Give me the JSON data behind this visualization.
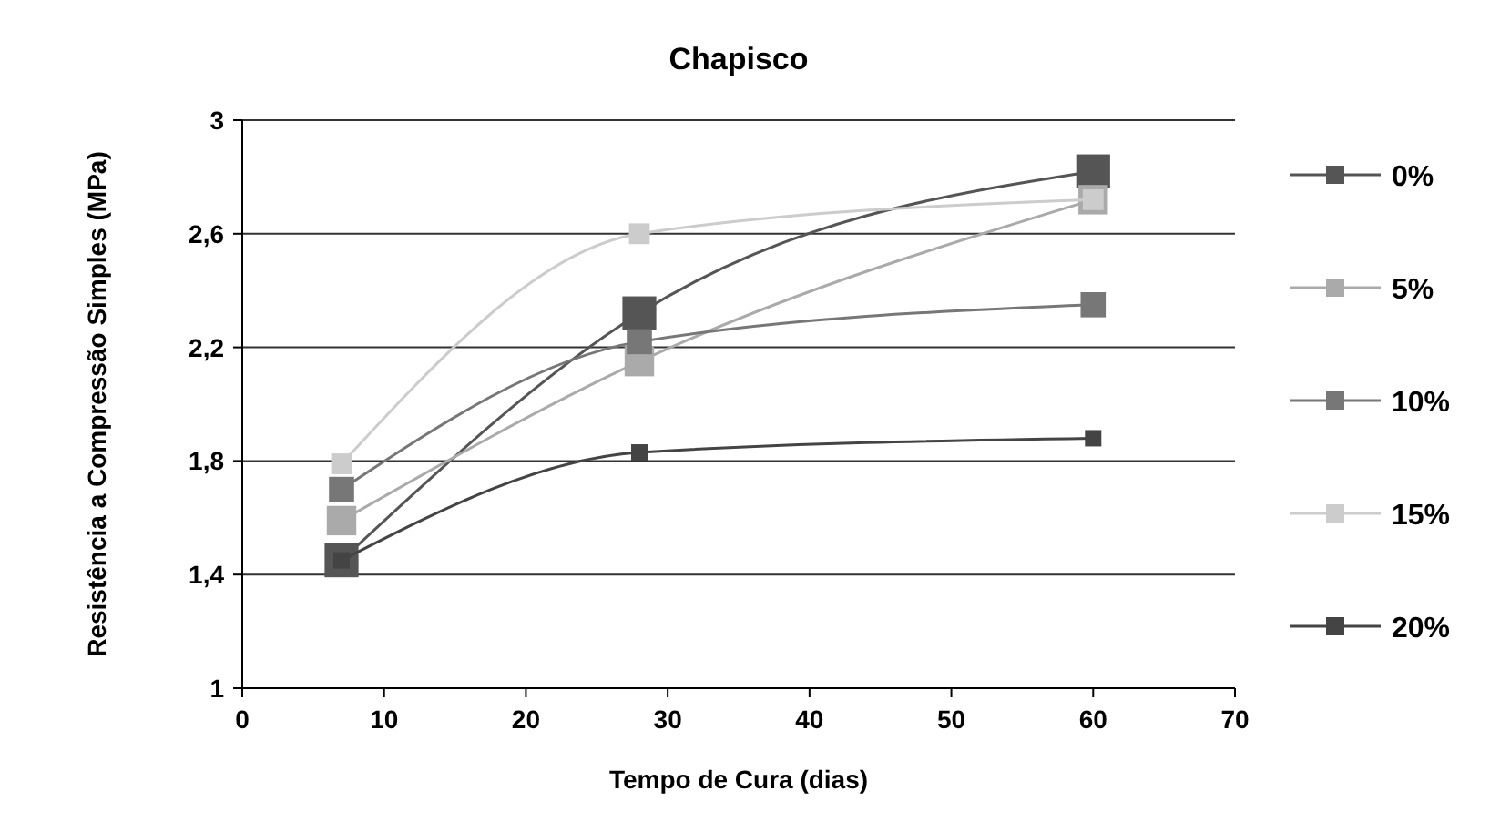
{
  "chart_data": {
    "type": "line",
    "title": "Chapisco",
    "xlabel": "Tempo de Cura (dias)",
    "ylabel": "Resistência a Compressão Simples (MPa)",
    "x": [
      7,
      28,
      60
    ],
    "series": [
      {
        "name": "0%",
        "color": "#555555",
        "values": [
          1.45,
          2.32,
          2.82
        ]
      },
      {
        "name": "5%",
        "color": "#aaaaaa",
        "values": [
          1.59,
          2.15,
          2.72
        ]
      },
      {
        "name": "10%",
        "color": "#777777",
        "values": [
          1.7,
          2.22,
          2.35
        ]
      },
      {
        "name": "15%",
        "color": "#cccccc",
        "values": [
          1.79,
          2.6,
          2.72
        ]
      },
      {
        "name": "20%",
        "color": "#444444",
        "values": [
          1.45,
          1.83,
          1.88
        ]
      }
    ],
    "xlim": [
      0,
      70
    ],
    "xticks": [
      0,
      10,
      20,
      30,
      40,
      50,
      60,
      70
    ],
    "ylim": [
      1,
      3
    ],
    "yticks": [
      {
        "value": 1,
        "label": "1"
      },
      {
        "value": 1.4,
        "label": "1,4"
      },
      {
        "value": 1.8,
        "label": "1,8"
      },
      {
        "value": 2.2,
        "label": "2,2"
      },
      {
        "value": 2.6,
        "label": "2,6"
      },
      {
        "value": 3,
        "label": "3"
      }
    ],
    "grid": "y",
    "legend": "right",
    "marker": "square",
    "line_style": "solid"
  }
}
